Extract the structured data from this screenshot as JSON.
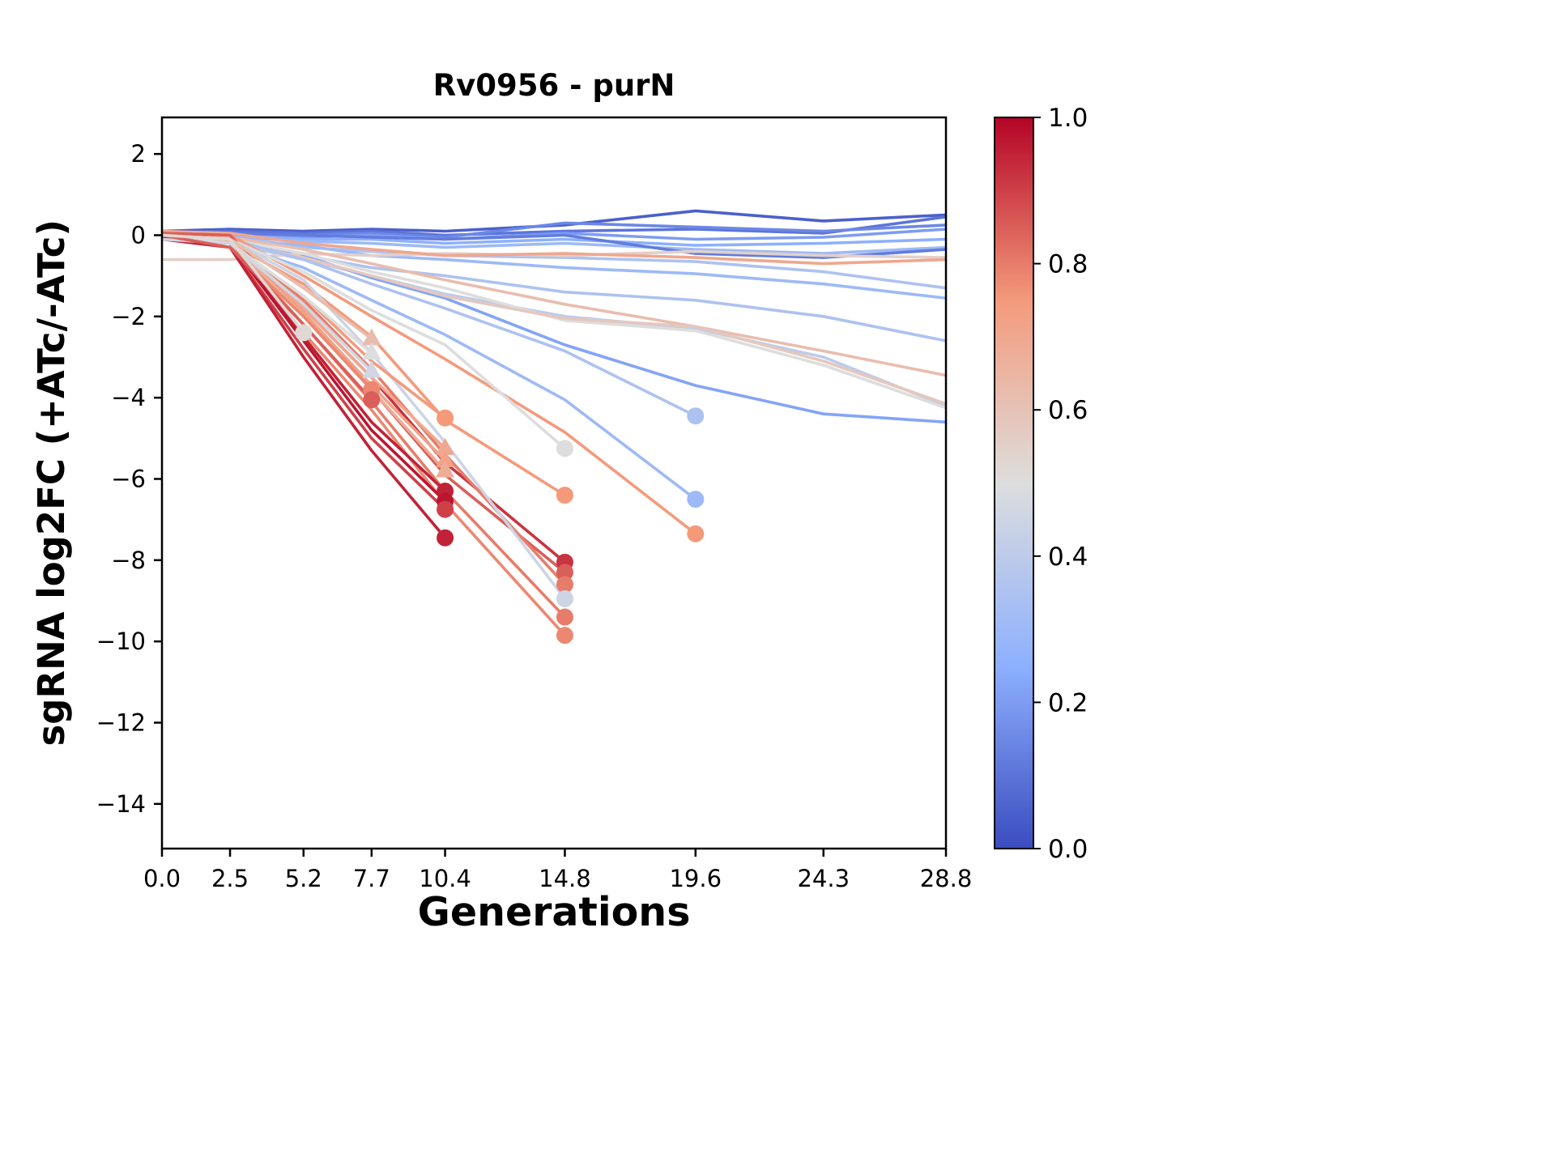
{
  "chart_data": {
    "type": "line",
    "title": "Rv0956 - purN",
    "xlabel": "Generations",
    "ylabel": "sgRNA log2FC (+ATc/-ATc)",
    "x": [
      0.0,
      2.5,
      5.2,
      7.7,
      10.4,
      14.8,
      19.6,
      24.3,
      28.8
    ],
    "xtick_labels": [
      "0.0",
      "2.5",
      "5.2",
      "7.7",
      "10.4",
      "14.8",
      "19.6",
      "24.3",
      "28.8"
    ],
    "ytick_values": [
      2,
      0,
      -2,
      -4,
      -6,
      -8,
      -10,
      -12,
      -14
    ],
    "ytick_labels": [
      "2",
      "0",
      "−2",
      "−4",
      "−6",
      "−8",
      "−10",
      "−12",
      "−14"
    ],
    "xlim": [
      0,
      28.8
    ],
    "ylim": [
      -15.1,
      2.9
    ],
    "grid": false,
    "colorbar": {
      "cmap": "coolwarm",
      "vmin": 0.0,
      "vmax": 1.0,
      "tick_values": [
        1.0,
        0.8,
        0.6,
        0.4,
        0.2,
        0.0
      ],
      "tick_labels": [
        "1.0",
        "0.8",
        "0.6",
        "0.4",
        "0.2",
        "0.0"
      ]
    },
    "colormap_anchors": [
      {
        "t": 0.0,
        "rgb": [
          59,
          76,
          192
        ]
      },
      {
        "t": 0.25,
        "rgb": [
          141,
          176,
          254
        ]
      },
      {
        "t": 0.5,
        "rgb": [
          221,
          221,
          221
        ]
      },
      {
        "t": 0.75,
        "rgb": [
          244,
          154,
          123
        ]
      },
      {
        "t": 1.0,
        "rgb": [
          180,
          4,
          38
        ]
      }
    ],
    "series": [
      {
        "c": 0.05,
        "marker": "none",
        "y": [
          0.1,
          0.15,
          0.1,
          0.15,
          0.1,
          0.25,
          0.6,
          0.35,
          0.5
        ]
      },
      {
        "c": 0.1,
        "marker": "none",
        "y": [
          0.05,
          0.1,
          0.05,
          0.1,
          0.0,
          0.1,
          0.15,
          0.05,
          0.45
        ]
      },
      {
        "c": 0.15,
        "marker": "none",
        "y": [
          0.0,
          0.05,
          0.0,
          0.05,
          -0.05,
          0.3,
          0.2,
          0.1,
          0.25
        ]
      },
      {
        "c": 0.2,
        "marker": "none",
        "y": [
          0.0,
          0.0,
          -0.05,
          0.0,
          -0.1,
          0.05,
          -0.1,
          -0.05,
          0.15
        ]
      },
      {
        "c": 0.25,
        "marker": "none",
        "y": [
          -0.05,
          0.0,
          -0.1,
          -0.1,
          -0.2,
          -0.1,
          -0.25,
          -0.2,
          -0.1
        ]
      },
      {
        "c": 0.3,
        "marker": "none",
        "y": [
          0.0,
          -0.05,
          -0.15,
          -0.2,
          -0.3,
          -0.2,
          -0.35,
          -0.45,
          -0.3
        ]
      },
      {
        "c": 0.12,
        "marker": "none",
        "y": [
          0.0,
          0.05,
          0.0,
          -0.05,
          -0.1,
          0.0,
          -0.45,
          -0.55,
          -0.35
        ]
      },
      {
        "c": 0.35,
        "marker": "none",
        "y": [
          0.0,
          -0.1,
          -0.3,
          -0.4,
          -0.5,
          -0.55,
          -0.65,
          -0.9,
          -1.3
        ]
      },
      {
        "c": 0.3,
        "marker": "none",
        "y": [
          0.0,
          -0.1,
          -0.25,
          -0.5,
          -0.6,
          -0.8,
          -0.95,
          -1.2,
          -1.55
        ]
      },
      {
        "c": 0.35,
        "marker": "none",
        "y": [
          0.0,
          -0.2,
          -0.5,
          -0.8,
          -1.0,
          -1.4,
          -1.6,
          -2.0,
          -2.6
        ]
      },
      {
        "c": 0.4,
        "marker": "none",
        "y": [
          -0.1,
          -0.2,
          -0.6,
          -1.0,
          -1.45,
          -2.0,
          -2.3,
          -3.0,
          -4.2
        ]
      },
      {
        "c": 0.22,
        "marker": "none",
        "y": [
          0.0,
          -0.1,
          -0.5,
          -1.05,
          -1.55,
          -2.7,
          -3.7,
          -4.4,
          -4.6
        ]
      },
      {
        "c": 0.55,
        "marker": "none",
        "y": [
          -0.6,
          -0.6,
          -0.45,
          -0.5,
          -0.45,
          -0.5,
          -0.4,
          -0.5,
          -0.55
        ]
      },
      {
        "c": 0.5,
        "marker": "none",
        "y": [
          0.0,
          -0.1,
          -0.45,
          -0.9,
          -1.3,
          -2.1,
          -2.35,
          -3.2,
          -4.25
        ]
      },
      {
        "c": 0.62,
        "marker": "none",
        "y": [
          0.05,
          -0.05,
          -0.35,
          -0.7,
          -1.1,
          -1.7,
          -2.25,
          -2.85,
          -3.45
        ]
      },
      {
        "c": 0.7,
        "marker": "none",
        "y": [
          0.1,
          0.05,
          -0.2,
          -0.35,
          -0.5,
          -0.45,
          -0.55,
          -0.7,
          -0.6
        ]
      },
      {
        "c": 0.58,
        "marker": "none",
        "y": [
          0.0,
          -0.15,
          -0.55,
          -1.0,
          -1.5,
          -2.05,
          -2.25,
          -3.1,
          -4.15
        ]
      },
      {
        "c": 0.35,
        "marker": "circle",
        "y": [
          0.0,
          -0.1,
          -0.6,
          -1.2,
          -1.8,
          -2.85,
          -4.45
        ]
      },
      {
        "c": 0.3,
        "marker": "circle",
        "y": [
          0.0,
          -0.2,
          -0.8,
          -1.6,
          -2.45,
          -4.05,
          -6.5
        ]
      },
      {
        "c": 0.75,
        "marker": "circle",
        "y": [
          0.05,
          0.0,
          -1.0,
          -2.0,
          -3.05,
          -4.85,
          -7.35
        ]
      },
      {
        "c": 0.5,
        "marker": "circle",
        "y": [
          0.0,
          -0.1,
          -0.9,
          -1.85,
          -2.7,
          -5.25
        ]
      },
      {
        "c": 0.75,
        "marker": "circle",
        "y": [
          0.0,
          -0.2,
          -1.2,
          -2.5,
          -4.55,
          -6.4
        ]
      },
      {
        "c": 0.92,
        "marker": "circle",
        "y": [
          0.0,
          -0.1,
          -1.8,
          -3.5,
          -5.6,
          -8.05
        ]
      },
      {
        "c": 0.85,
        "marker": "circle",
        "y": [
          0.05,
          0.0,
          -2.0,
          -3.8,
          -5.9,
          -8.3
        ]
      },
      {
        "c": 0.8,
        "marker": "circle",
        "y": [
          0.0,
          -0.15,
          -1.6,
          -3.3,
          -5.4,
          -8.6
        ]
      },
      {
        "c": 0.45,
        "marker": "circle",
        "y": [
          0.0,
          -0.1,
          -1.1,
          -2.9,
          -5.1,
          -8.95
        ]
      },
      {
        "c": 0.8,
        "marker": "circle",
        "y": [
          0.0,
          -0.2,
          -2.2,
          -4.1,
          -6.3,
          -9.4
        ]
      },
      {
        "c": 0.78,
        "marker": "circle",
        "y": [
          0.0,
          -0.1,
          -2.4,
          -4.3,
          -6.6,
          -9.85
        ]
      },
      {
        "c": 0.95,
        "marker": "circle",
        "y": [
          0.0,
          -0.1,
          -2.5,
          -4.6,
          -6.3
        ]
      },
      {
        "c": 0.97,
        "marker": "circle",
        "y": [
          -0.05,
          -0.2,
          -2.6,
          -4.8,
          -6.55
        ]
      },
      {
        "c": 0.9,
        "marker": "circle",
        "y": [
          0.0,
          -0.3,
          -2.8,
          -5.0,
          -6.75
        ]
      },
      {
        "c": 0.95,
        "marker": "circle",
        "y": [
          -0.1,
          -0.3,
          -3.0,
          -5.3,
          -7.45
        ]
      },
      {
        "c": 0.75,
        "marker": "circle",
        "y": [
          0.0,
          -0.2,
          -1.5,
          -3.1,
          -4.5
        ]
      },
      {
        "c": 0.7,
        "marker": "triangle",
        "y": [
          0.0,
          -0.1,
          -1.8,
          -3.5,
          -5.25
        ]
      },
      {
        "c": 0.72,
        "marker": "triangle",
        "y": [
          0.0,
          -0.2,
          -1.9,
          -3.7,
          -5.55
        ]
      },
      {
        "c": 0.68,
        "marker": "triangle",
        "y": [
          0.0,
          -0.15,
          -2.0,
          -3.8,
          -5.8
        ]
      },
      {
        "c": 0.62,
        "marker": "triangle",
        "y": [
          0.0,
          -0.1,
          -1.3,
          -2.55
        ]
      },
      {
        "c": 0.5,
        "marker": "triangle",
        "y": [
          0.0,
          -0.2,
          -1.5,
          -2.9
        ]
      },
      {
        "c": 0.46,
        "marker": "triangle",
        "y": [
          -0.1,
          -0.2,
          -1.7,
          -3.35
        ]
      },
      {
        "c": 0.78,
        "marker": "circle",
        "y": [
          0.0,
          -0.3,
          -2.0,
          -3.8
        ]
      },
      {
        "c": 0.85,
        "marker": "circle",
        "y": [
          0.0,
          -0.3,
          -2.2,
          -4.05
        ]
      },
      {
        "c": 0.52,
        "marker": "circle",
        "y": [
          0.0,
          -0.1,
          -2.4
        ]
      }
    ]
  }
}
